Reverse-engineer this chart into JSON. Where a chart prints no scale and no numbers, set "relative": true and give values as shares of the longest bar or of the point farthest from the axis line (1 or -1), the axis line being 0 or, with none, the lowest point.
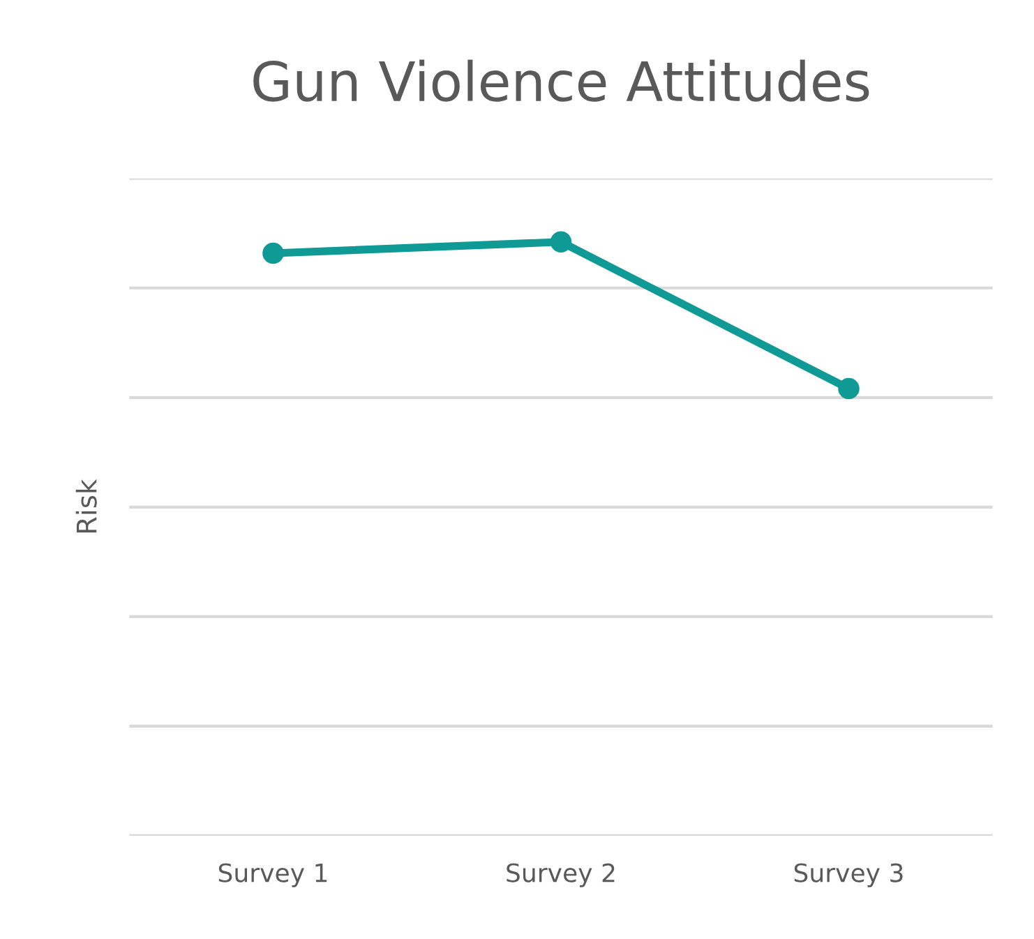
{
  "chart_data": {
    "type": "line",
    "title": "Gun Violence Attitudes",
    "ylabel": "Risk",
    "categories": [
      "Survey 1",
      "Survey 2",
      "Survey 3"
    ],
    "series": [
      {
        "color": "#0f9a96",
        "values": [
          0.981,
          1,
          0.753
        ]
      }
    ],
    "relative": true,
    "grid": "y",
    "marker": "circle",
    "line_style": "solid"
  }
}
